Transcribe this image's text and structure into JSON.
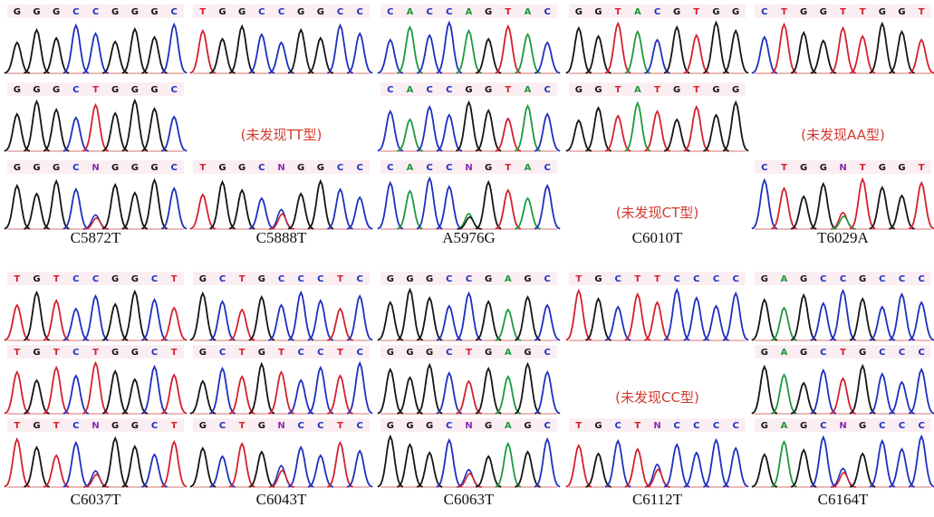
{
  "blocks": [
    {
      "labels": [
        "C5872T",
        "C5888T",
        "A5976G",
        "C6010T",
        "T6029A"
      ],
      "rows": [
        [
          {
            "bases": [
              "G",
              "G",
              "G",
              "C",
              "C",
              "G",
              "G",
              "G",
              "C"
            ]
          },
          {
            "bases": [
              "T",
              "G",
              "G",
              "C",
              "C",
              "G",
              "G",
              "C",
              "C"
            ]
          },
          {
            "bases": [
              "C",
              "A",
              "C",
              "C",
              "A",
              "G",
              "T",
              "A",
              "C"
            ]
          },
          {
            "bases": [
              "G",
              "G",
              "T",
              "A",
              "C",
              "G",
              "T",
              "G",
              "G"
            ]
          },
          {
            "bases": [
              "C",
              "T",
              "G",
              "G",
              "T",
              "T",
              "G",
              "G",
              "T"
            ]
          }
        ],
        [
          {
            "bases": [
              "G",
              "G",
              "G",
              "C",
              "T",
              "G",
              "G",
              "G",
              "C"
            ]
          },
          {
            "note": "(未发现TT型)"
          },
          {
            "bases": [
              "C",
              "A",
              "C",
              "C",
              "G",
              "G",
              "T",
              "A",
              "C"
            ]
          },
          {
            "bases": [
              "G",
              "G",
              "T",
              "A",
              "T",
              "G",
              "T",
              "G",
              "G"
            ]
          },
          {
            "note": "(未发现AA型)"
          }
        ],
        [
          {
            "bases": [
              "G",
              "G",
              "G",
              "C",
              "N",
              "G",
              "G",
              "G",
              "C"
            ]
          },
          {
            "bases": [
              "T",
              "G",
              "G",
              "C",
              "N",
              "G",
              "G",
              "C",
              "C"
            ]
          },
          {
            "bases": [
              "C",
              "A",
              "C",
              "C",
              "N",
              "G",
              "T",
              "A",
              "C"
            ]
          },
          {
            "note": "(未发现CT型)"
          },
          {
            "bases": [
              "C",
              "T",
              "G",
              "G",
              "N",
              "T",
              "G",
              "G",
              "T"
            ]
          }
        ]
      ]
    },
    {
      "labels": [
        "C6037T",
        "C6043T",
        "C6063T",
        "C6112T",
        "C6164T"
      ],
      "rows": [
        [
          {
            "bases": [
              "T",
              "G",
              "T",
              "C",
              "C",
              "G",
              "G",
              "C",
              "T"
            ]
          },
          {
            "bases": [
              "G",
              "C",
              "T",
              "G",
              "C",
              "C",
              "C",
              "T",
              "C"
            ]
          },
          {
            "bases": [
              "G",
              "G",
              "G",
              "C",
              "C",
              "G",
              "A",
              "G",
              "C"
            ]
          },
          {
            "bases": [
              "T",
              "G",
              "C",
              "T",
              "T",
              "C",
              "C",
              "C",
              "C"
            ]
          },
          {
            "bases": [
              "G",
              "A",
              "G",
              "C",
              "C",
              "G",
              "C",
              "C",
              "C"
            ]
          }
        ],
        [
          {
            "bases": [
              "T",
              "G",
              "T",
              "C",
              "T",
              "G",
              "G",
              "C",
              "T"
            ]
          },
          {
            "bases": [
              "G",
              "C",
              "T",
              "G",
              "T",
              "C",
              "C",
              "T",
              "C"
            ]
          },
          {
            "bases": [
              "G",
              "G",
              "G",
              "C",
              "T",
              "G",
              "A",
              "G",
              "C"
            ]
          },
          {
            "note": "(未发现CC型)"
          },
          {
            "bases": [
              "G",
              "A",
              "G",
              "C",
              "T",
              "G",
              "C",
              "C",
              "C"
            ]
          }
        ],
        [
          {
            "bases": [
              "T",
              "G",
              "T",
              "C",
              "N",
              "G",
              "G",
              "C",
              "T"
            ]
          },
          {
            "bases": [
              "G",
              "C",
              "T",
              "G",
              "N",
              "C",
              "C",
              "T",
              "C"
            ]
          },
          {
            "bases": [
              "G",
              "G",
              "G",
              "C",
              "N",
              "G",
              "A",
              "G",
              "C"
            ]
          },
          {
            "bases": [
              "T",
              "G",
              "C",
              "T",
              "N",
              "C",
              "C",
              "C",
              "C"
            ]
          },
          {
            "bases": [
              "G",
              "A",
              "G",
              "C",
              "N",
              "G",
              "C",
              "C",
              "C"
            ]
          }
        ]
      ]
    }
  ]
}
